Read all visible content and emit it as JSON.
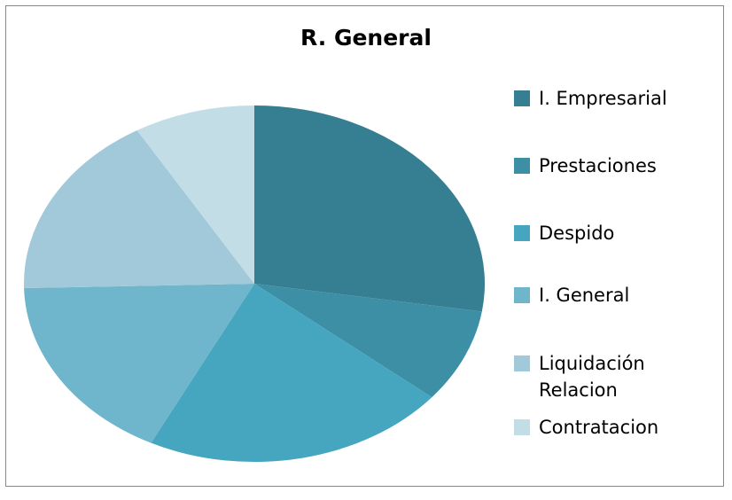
{
  "chart_data": {
    "type": "pie",
    "title": "R. General",
    "categories": [
      "I. Empresarial",
      "Prestaciones",
      "Despido",
      "I. General",
      "Liquidación Relacion",
      "Contratacion"
    ],
    "values": [
      27.5,
      8.5,
      21.4,
      17.2,
      16.9,
      8.5
    ],
    "colors": [
      "#367e91",
      "#3d8fa5",
      "#46a6bf",
      "#6fb5cc",
      "#a2c9d9",
      "#c3dde6"
    ],
    "legend": "right"
  }
}
